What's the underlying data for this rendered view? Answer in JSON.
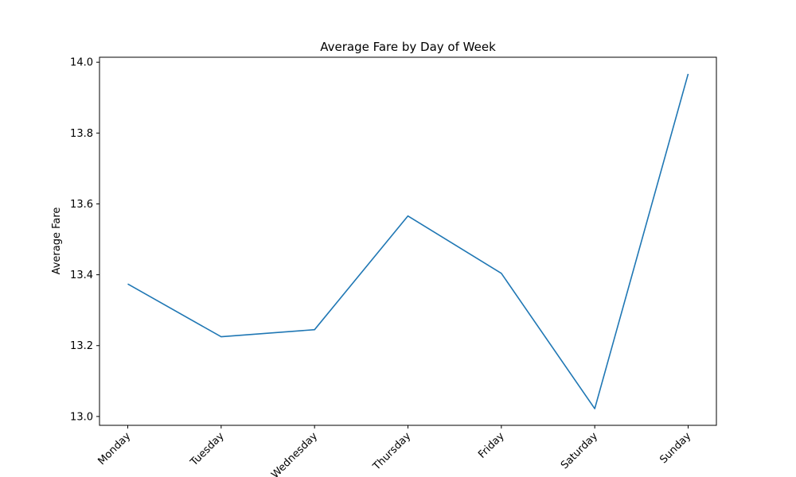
{
  "chart_data": {
    "type": "line",
    "title": "Average Fare by Day of Week",
    "xlabel": "",
    "ylabel": "Average Fare",
    "categories": [
      "Monday",
      "Tuesday",
      "Wednesday",
      "Thursday",
      "Friday",
      "Saturday",
      "Sunday"
    ],
    "series": [
      {
        "values": [
          13.374,
          13.225,
          13.245,
          13.566,
          13.404,
          13.022,
          13.967
        ],
        "color": "#1f77b4"
      }
    ],
    "yticks": [
      "13.0",
      "13.2",
      "13.4",
      "13.6",
      "13.8",
      "14.0"
    ],
    "ylim": [
      12.975,
      14.014
    ],
    "grid": false,
    "legend": "none"
  }
}
